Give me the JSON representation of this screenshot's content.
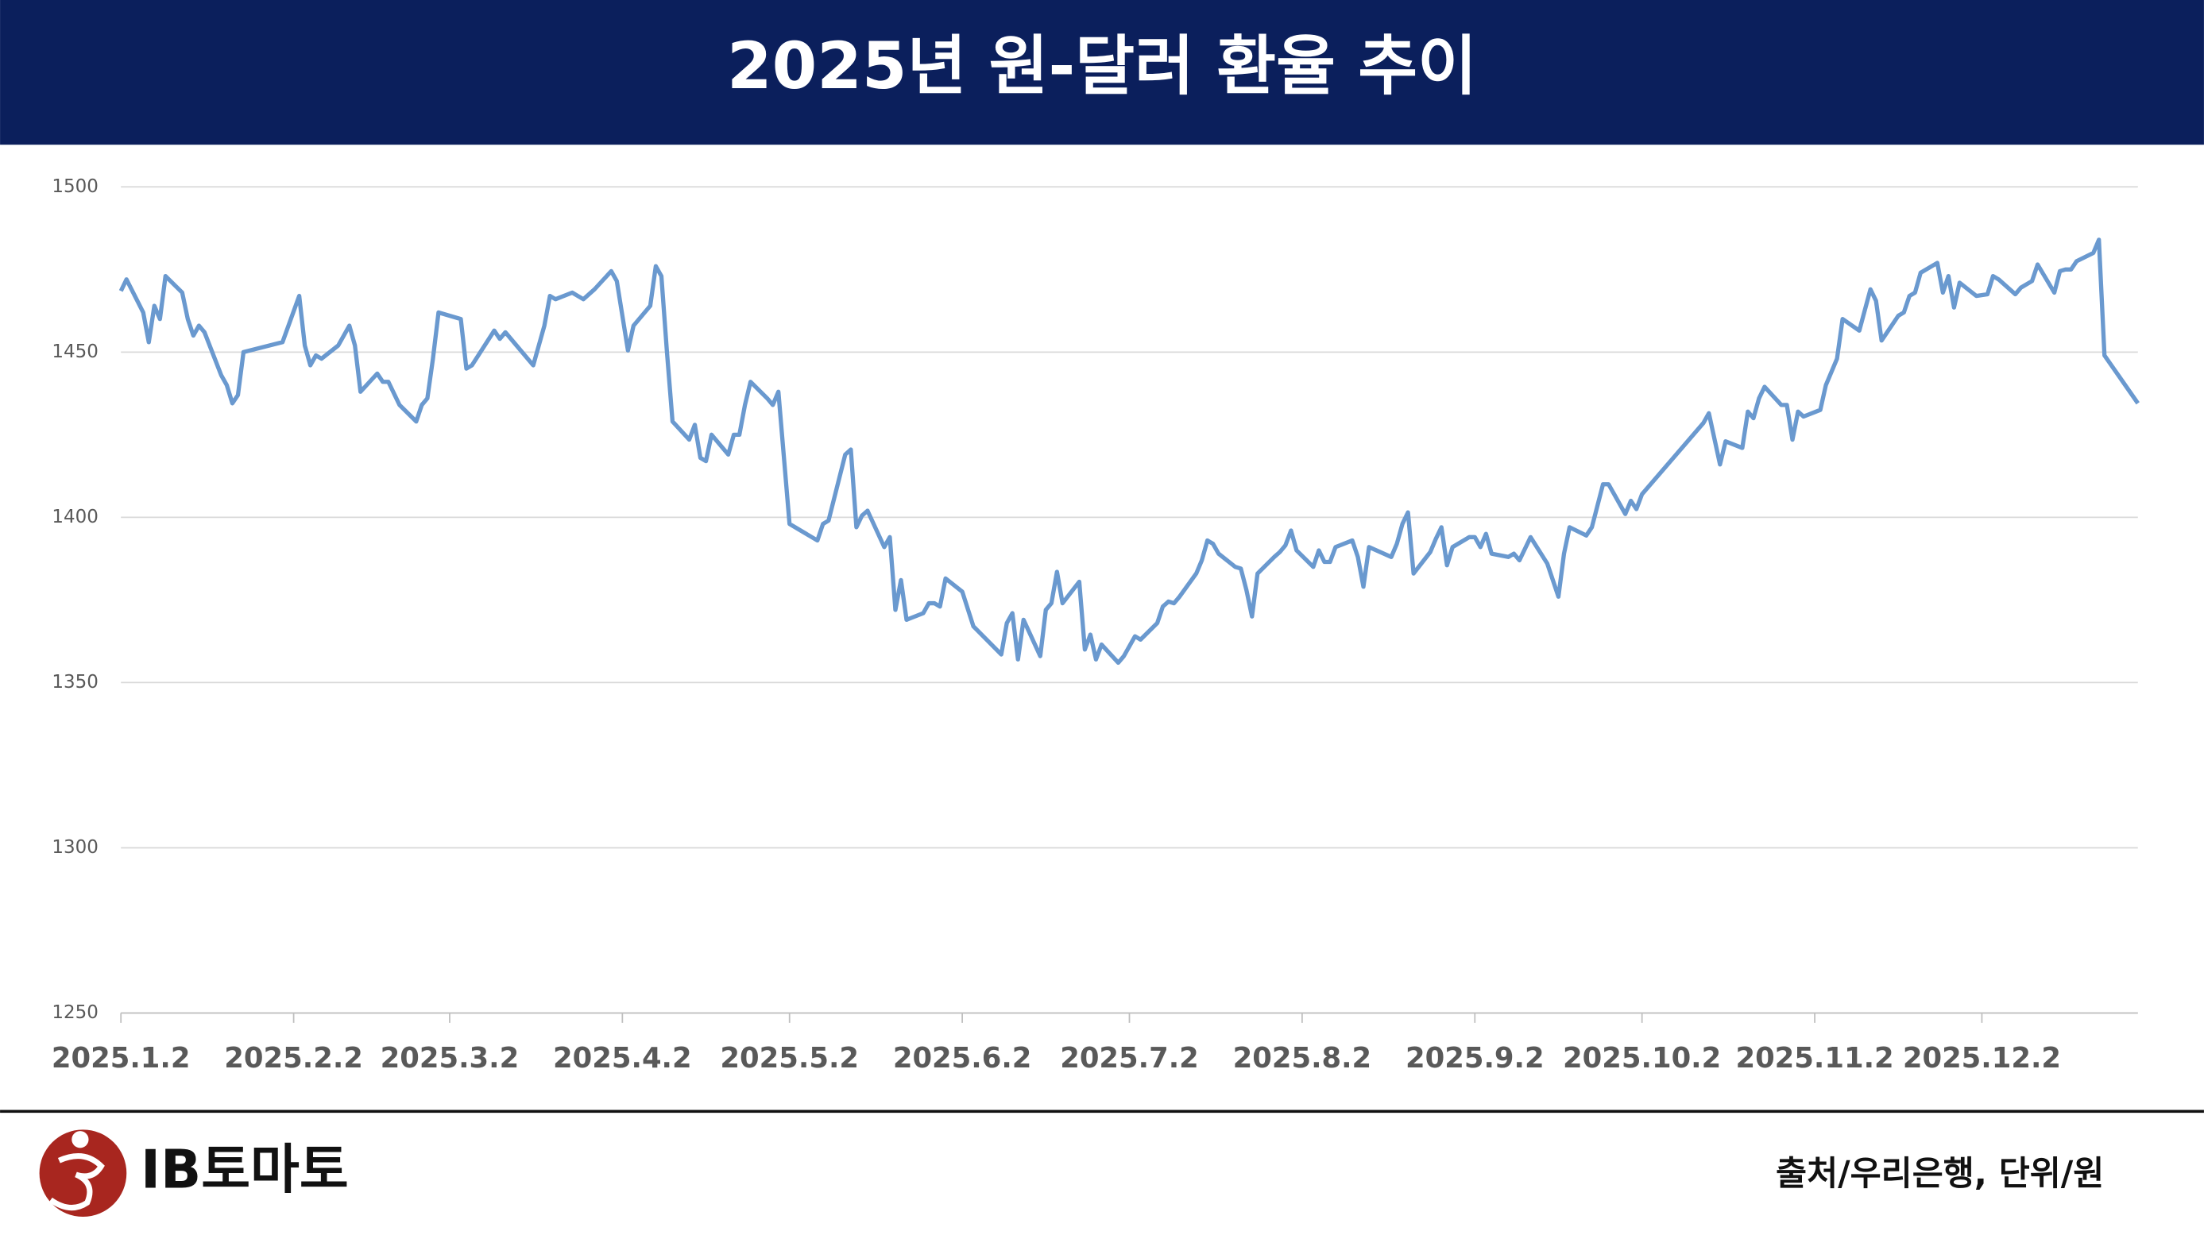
{
  "header": {
    "title": "2025년 원-달러 환율 추이"
  },
  "chart_data": {
    "type": "line",
    "color": "#6a99cf",
    "grid": true,
    "x": [
      "2025-01-02",
      "2025-01-03",
      "2025-01-06",
      "2025-01-07",
      "2025-01-08",
      "2025-01-09",
      "2025-01-10",
      "2025-01-13",
      "2025-01-14",
      "2025-01-15",
      "2025-01-16",
      "2025-01-17",
      "2025-01-20",
      "2025-01-21",
      "2025-01-22",
      "2025-01-23",
      "2025-01-24",
      "2025-01-31",
      "2025-02-03",
      "2025-02-04",
      "2025-02-05",
      "2025-02-06",
      "2025-02-07",
      "2025-02-10",
      "2025-02-12",
      "2025-02-13",
      "2025-02-14",
      "2025-02-17",
      "2025-02-18",
      "2025-02-19",
      "2025-02-21",
      "2025-02-24",
      "2025-02-25",
      "2025-02-26",
      "2025-02-27",
      "2025-02-28",
      "2025-03-04",
      "2025-03-05",
      "2025-03-06",
      "2025-03-10",
      "2025-03-11",
      "2025-03-12",
      "2025-03-14",
      "2025-03-17",
      "2025-03-19",
      "2025-03-20",
      "2025-03-21",
      "2025-03-24",
      "2025-03-25",
      "2025-03-26",
      "2025-03-28",
      "2025-03-31",
      "2025-04-01",
      "2025-04-03",
      "2025-04-04",
      "2025-04-07",
      "2025-04-08",
      "2025-04-09",
      "2025-04-10",
      "2025-04-11",
      "2025-04-14",
      "2025-04-15",
      "2025-04-16",
      "2025-04-17",
      "2025-04-18",
      "2025-04-21",
      "2025-04-22",
      "2025-04-23",
      "2025-04-24",
      "2025-04-25",
      "2025-04-28",
      "2025-04-29",
      "2025-04-30",
      "2025-05-02",
      "2025-05-07",
      "2025-05-08",
      "2025-05-09",
      "2025-05-12",
      "2025-05-13",
      "2025-05-14",
      "2025-05-15",
      "2025-05-16",
      "2025-05-19",
      "2025-05-20",
      "2025-05-21",
      "2025-05-22",
      "2025-05-23",
      "2025-05-26",
      "2025-05-27",
      "2025-05-28",
      "2025-05-29",
      "2025-05-30",
      "2025-06-02",
      "2025-06-04",
      "2025-06-09",
      "2025-06-10",
      "2025-06-11",
      "2025-06-12",
      "2025-06-13",
      "2025-06-16",
      "2025-06-17",
      "2025-06-18",
      "2025-06-19",
      "2025-06-20",
      "2025-06-23",
      "2025-06-24",
      "2025-06-25",
      "2025-06-26",
      "2025-06-27",
      "2025-06-30",
      "2025-07-01",
      "2025-07-02",
      "2025-07-03",
      "2025-07-04",
      "2025-07-07",
      "2025-07-08",
      "2025-07-09",
      "2025-07-10",
      "2025-07-11",
      "2025-07-14",
      "2025-07-15",
      "2025-07-16",
      "2025-07-17",
      "2025-07-18",
      "2025-07-21",
      "2025-07-22",
      "2025-07-23",
      "2025-07-24",
      "2025-07-25",
      "2025-07-28",
      "2025-07-29",
      "2025-07-30",
      "2025-07-31",
      "2025-08-01",
      "2025-08-04",
      "2025-08-05",
      "2025-08-06",
      "2025-08-07",
      "2025-08-08",
      "2025-08-11",
      "2025-08-12",
      "2025-08-13",
      "2025-08-14",
      "2025-08-18",
      "2025-08-19",
      "2025-08-20",
      "2025-08-21",
      "2025-08-22",
      "2025-08-25",
      "2025-08-26",
      "2025-08-27",
      "2025-08-28",
      "2025-08-29",
      "2025-09-01",
      "2025-09-02",
      "2025-09-03",
      "2025-09-04",
      "2025-09-05",
      "2025-09-08",
      "2025-09-09",
      "2025-09-10",
      "2025-09-12",
      "2025-09-15",
      "2025-09-17",
      "2025-09-18",
      "2025-09-19",
      "2025-09-22",
      "2025-09-23",
      "2025-09-25",
      "2025-09-26",
      "2025-09-29",
      "2025-09-30",
      "2025-10-01",
      "2025-10-02",
      "2025-10-13",
      "2025-10-14",
      "2025-10-16",
      "2025-10-17",
      "2025-10-20",
      "2025-10-21",
      "2025-10-22",
      "2025-10-23",
      "2025-10-24",
      "2025-10-27",
      "2025-10-28",
      "2025-10-29",
      "2025-10-30",
      "2025-10-31",
      "2025-11-03",
      "2025-11-04",
      "2025-11-06",
      "2025-11-07",
      "2025-11-10",
      "2025-11-12",
      "2025-11-13",
      "2025-11-14",
      "2025-11-17",
      "2025-11-18",
      "2025-11-19",
      "2025-11-20",
      "2025-11-21",
      "2025-11-24",
      "2025-11-25",
      "2025-11-26",
      "2025-11-27",
      "2025-11-28",
      "2025-12-01",
      "2025-12-03",
      "2025-12-04",
      "2025-12-05",
      "2025-12-08",
      "2025-12-09",
      "2025-12-11",
      "2025-12-12",
      "2025-12-15",
      "2025-12-16",
      "2025-12-17",
      "2025-12-18",
      "2025-12-19",
      "2025-12-22",
      "2025-12-23",
      "2025-12-24",
      "2025-12-30"
    ],
    "values": [
      1468.5,
      1472,
      1462,
      1453,
      1464,
      1460,
      1473,
      1468,
      1460,
      1455,
      1458,
      1456,
      1443,
      1440,
      1434.5,
      1437,
      1450,
      1453,
      1467,
      1452,
      1446,
      1449,
      1448,
      1452,
      1458,
      1452,
      1438,
      1443.5,
      1441,
      1441,
      1434,
      1429,
      1434,
      1436,
      1448,
      1462,
      1460,
      1445,
      1446,
      1456.5,
      1454,
      1456,
      1452,
      1446,
      1458,
      1467,
      1466,
      1468,
      1467,
      1466,
      1469,
      1474.5,
      1471.5,
      1450.5,
      1458,
      1464,
      1476,
      1473,
      1450,
      1429,
      1423.5,
      1428,
      1418,
      1417,
      1425,
      1419,
      1425,
      1425,
      1434,
      1441,
      1436,
      1434,
      1438,
      1398,
      1393,
      1398,
      1399,
      1419,
      1420.5,
      1397,
      1400.5,
      1402,
      1391,
      1394,
      1372,
      1381,
      1369,
      1371,
      1374,
      1374,
      1373,
      1381.5,
      1377.5,
      1367,
      1358.5,
      1368,
      1371,
      1357,
      1369,
      1358,
      1372,
      1374,
      1383.5,
      1374,
      1380.5,
      1360,
      1364.5,
      1357,
      1361.5,
      1356,
      1358,
      1361,
      1364,
      1363,
      1368,
      1373,
      1374.5,
      1374,
      1376,
      1383,
      1387,
      1393,
      1392,
      1389,
      1385,
      1384.5,
      1378,
      1370,
      1383,
      1388,
      1389.5,
      1391.5,
      1396,
      1390,
      1385,
      1390,
      1386.5,
      1386.5,
      1391,
      1393,
      1388,
      1379,
      1391,
      1388,
      1392,
      1398,
      1401.5,
      1383,
      1389.5,
      1393.5,
      1397,
      1385.5,
      1391,
      1394,
      1394,
      1391,
      1395,
      1389,
      1388,
      1389,
      1387,
      1394,
      1386,
      1376,
      1389,
      1397,
      1394.5,
      1397,
      1410,
      1410,
      1401,
      1405,
      1402.5,
      1407,
      1428.5,
      1431.5,
      1416,
      1423,
      1421,
      1432,
      1430,
      1436,
      1439.5,
      1434,
      1434,
      1423.5,
      1432,
      1430.5,
      1432.5,
      1440,
      1448,
      1460,
      1456.5,
      1469,
      1465.5,
      1453.5,
      1461,
      1462,
      1467,
      1468,
      1474,
      1477,
      1468,
      1473,
      1463.5,
      1471,
      1467,
      1467.5,
      1473,
      1472,
      1467.5,
      1469.5,
      1471.5,
      1476.5,
      1468,
      1474.5,
      1475,
      1475,
      1477.5,
      1480,
      1484,
      1449,
      1434.5
    ],
    "xlim": [
      "2025-01-02",
      "2025-12-30"
    ],
    "xticks": [
      {
        "value": "2025-01-02",
        "label": "2025.1.2"
      },
      {
        "value": "2025-02-02",
        "label": "2025.2.2"
      },
      {
        "value": "2025-03-02",
        "label": "2025.3.2"
      },
      {
        "value": "2025-04-02",
        "label": "2025.4.2"
      },
      {
        "value": "2025-05-02",
        "label": "2025.5.2"
      },
      {
        "value": "2025-06-02",
        "label": "2025.6.2"
      },
      {
        "value": "2025-07-02",
        "label": "2025.7.2"
      },
      {
        "value": "2025-08-02",
        "label": "2025.8.2"
      },
      {
        "value": "2025-09-02",
        "label": "2025.9.2"
      },
      {
        "value": "2025-10-02",
        "label": "2025.10.2"
      },
      {
        "value": "2025-11-02",
        "label": "2025.11.2"
      },
      {
        "value": "2025-12-02",
        "label": "2025.12.2"
      }
    ],
    "ylim": [
      1250,
      1500
    ],
    "yticks": [
      1250,
      1300,
      1350,
      1400,
      1450,
      1500
    ]
  },
  "footer": {
    "logo": "IB토마토",
    "source": "출처/우리은행, 단위/원"
  }
}
